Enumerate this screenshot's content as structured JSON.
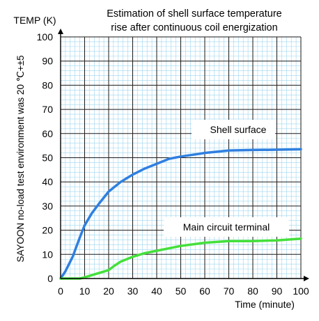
{
  "chart_data": {
    "type": "line",
    "title_lines": [
      "Estimation of shell surface temperature",
      "rise after continuous coil energization"
    ],
    "ylabel": "TEMP (K)",
    "xlabel": "Time (minute)",
    "side_note": "SAYOON no-load test environment was 20 ℃+±5",
    "xlim": [
      0,
      100
    ],
    "ylim": [
      0,
      100
    ],
    "x_ticks": [
      0,
      10,
      20,
      30,
      40,
      50,
      60,
      70,
      80,
      90,
      100
    ],
    "y_ticks": [
      0,
      10,
      20,
      30,
      40,
      50,
      60,
      70,
      80,
      90,
      100
    ],
    "grid": true,
    "series": [
      {
        "name": "Shell surface",
        "color": "#2f7fe0",
        "x": [
          0,
          2,
          5,
          8,
          10,
          13,
          16,
          20,
          25,
          30,
          35,
          40,
          45,
          50,
          55,
          60,
          70,
          80,
          90,
          100
        ],
        "y": [
          0,
          3,
          9,
          17,
          22,
          27,
          31,
          36,
          40,
          43,
          45.5,
          47.5,
          49.5,
          50.5,
          51.2,
          52,
          53,
          53.2,
          53.3,
          53.5
        ]
      },
      {
        "name": "Main circuit terminal",
        "color": "#44e03a",
        "x": [
          0,
          5,
          8,
          10,
          15,
          20,
          22,
          25,
          30,
          35,
          40,
          50,
          60,
          70,
          80,
          90,
          100
        ],
        "y": [
          0,
          0,
          0,
          0.5,
          2,
          3.5,
          5,
          7,
          9,
          10.5,
          11.5,
          13.5,
          14.8,
          15.5,
          15.5,
          15.8,
          16.5
        ]
      }
    ]
  }
}
